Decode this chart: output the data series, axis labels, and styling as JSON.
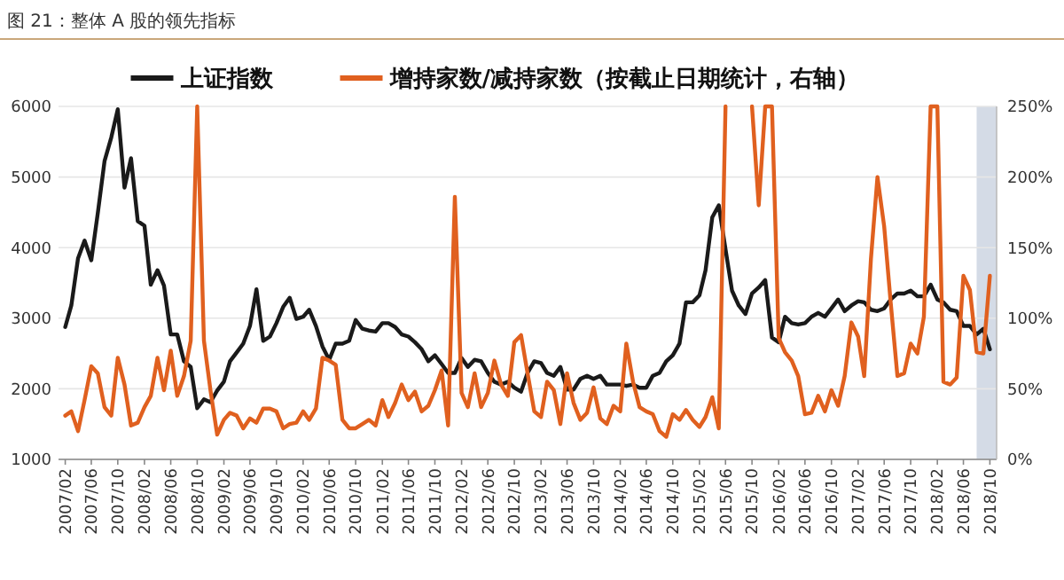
{
  "chart_data": {
    "type": "line",
    "title": "图 21：整体 A 股的领先指标",
    "x": [
      "2007-02",
      "2007-03",
      "2007-04",
      "2007-05",
      "2007-06",
      "2007-07",
      "2007-08",
      "2007-09",
      "2007-10",
      "2007-11",
      "2007-12",
      "2008-01",
      "2008-02",
      "2008-03",
      "2008-04",
      "2008-05",
      "2008-06",
      "2008-07",
      "2008-08",
      "2008-09",
      "2008-10",
      "2008-11",
      "2008-12",
      "2009-01",
      "2009-02",
      "2009-03",
      "2009-04",
      "2009-05",
      "2009-06",
      "2009-07",
      "2009-08",
      "2009-09",
      "2009-10",
      "2009-11",
      "2009-12",
      "2010-01",
      "2010-02",
      "2010-03",
      "2010-04",
      "2010-05",
      "2010-06",
      "2010-07",
      "2010-08",
      "2010-09",
      "2010-10",
      "2010-11",
      "2010-12",
      "2011-01",
      "2011-02",
      "2011-03",
      "2011-04",
      "2011-05",
      "2011-06",
      "2011-07",
      "2011-08",
      "2011-09",
      "2011-10",
      "2011-11",
      "2011-12",
      "2012-01",
      "2012-02",
      "2012-03",
      "2012-04",
      "2012-05",
      "2012-06",
      "2012-07",
      "2012-08",
      "2012-09",
      "2012-10",
      "2012-11",
      "2012-12",
      "2013-01",
      "2013-02",
      "2013-03",
      "2013-04",
      "2013-05",
      "2013-06",
      "2013-07",
      "2013-08",
      "2013-09",
      "2013-10",
      "2013-11",
      "2013-12",
      "2014-01",
      "2014-02",
      "2014-03",
      "2014-04",
      "2014-05",
      "2014-06",
      "2014-07",
      "2014-08",
      "2014-09",
      "2014-10",
      "2014-11",
      "2014-12",
      "2015-01",
      "2015-02",
      "2015-03",
      "2015-04",
      "2015-05",
      "2015-06",
      "2015-07",
      "2015-08",
      "2015-09",
      "2015-10",
      "2015-11",
      "2015-12",
      "2016-01",
      "2016-02",
      "2016-03",
      "2016-04",
      "2016-05",
      "2016-06",
      "2016-07",
      "2016-08",
      "2016-09",
      "2016-10",
      "2016-11",
      "2016-12",
      "2017-01",
      "2017-02",
      "2017-03",
      "2017-04",
      "2017-05",
      "2017-06",
      "2017-07",
      "2017-08",
      "2017-09",
      "2017-10",
      "2017-11",
      "2017-12",
      "2018-01",
      "2018-02",
      "2018-03",
      "2018-04",
      "2018-05",
      "2018-06",
      "2018-07",
      "2018-08",
      "2018-09",
      "2018-10"
    ],
    "series": [
      {
        "name": "上证指数",
        "color": "#1a1a1a",
        "values": [
          2875,
          3180,
          3850,
          4100,
          3820,
          4490,
          5225,
          5560,
          5960,
          4850,
          5265,
          4375,
          4310,
          3475,
          3680,
          3460,
          2770,
          2770,
          2390,
          2310,
          1725,
          1850,
          1810,
          1975,
          2100,
          2390,
          2515,
          2640,
          2890,
          3410,
          2680,
          2740,
          2930,
          3160,
          3290,
          2990,
          3020,
          3120,
          2890,
          2600,
          2410,
          2640,
          2640,
          2680,
          2975,
          2850,
          2825,
          2810,
          2930,
          2930,
          2875,
          2770,
          2740,
          2660,
          2560,
          2390,
          2475,
          2350,
          2225,
          2225,
          2435,
          2310,
          2410,
          2390,
          2225,
          2100,
          2060,
          2100,
          2015,
          1960,
          2225,
          2390,
          2365,
          2225,
          2185,
          2310,
          1990,
          1990,
          2140,
          2185,
          2140,
          2185,
          2060,
          2060,
          2060,
          2040,
          2060,
          2015,
          2015,
          2185,
          2225,
          2390,
          2475,
          2640,
          3225,
          3225,
          3325,
          3680,
          4430,
          4600,
          3975,
          3390,
          3180,
          3060,
          3350,
          3435,
          3540,
          2725,
          2660,
          3020,
          2930,
          2910,
          2930,
          3020,
          3075,
          3020,
          3140,
          3265,
          3100,
          3180,
          3240,
          3225,
          3120,
          3100,
          3140,
          3265,
          3350,
          3350,
          3390,
          3310,
          3310,
          3475,
          3265,
          3225,
          3120,
          3100,
          2890,
          2890,
          2770,
          2850,
          2560
        ]
      },
      {
        "name": "增持家数/减持家数（按截止日期统计，右轴）",
        "color": "#e0601f",
        "axis": "y2",
        "values": [
          31,
          34,
          20,
          42,
          66,
          61,
          37,
          31,
          72,
          53,
          24,
          26,
          37,
          45,
          72,
          49,
          77,
          45,
          59,
          84,
          250,
          84,
          49,
          17.5,
          28,
          33,
          31,
          22,
          29,
          26,
          36,
          36,
          34,
          22,
          25,
          26,
          34,
          28,
          36,
          72,
          70,
          67,
          28,
          22,
          22,
          25,
          28,
          24,
          42,
          30,
          40,
          53,
          42,
          48,
          34,
          38,
          49,
          63,
          24,
          186,
          47,
          37,
          61,
          37,
          47,
          70,
          53,
          45,
          83,
          88,
          61,
          34,
          30,
          55,
          49,
          25,
          61,
          40,
          28,
          33,
          51,
          29,
          25,
          38,
          34,
          82,
          55,
          37,
          34,
          32,
          20,
          16,
          32,
          28,
          35,
          28,
          23,
          30,
          44,
          22,
          250,
          null,
          null,
          null,
          250,
          180,
          250,
          250,
          86,
          76,
          70,
          59,
          32,
          33,
          45,
          34,
          49,
          38,
          59,
          97,
          87,
          59,
          142,
          200,
          165,
          111,
          59,
          61,
          82,
          75,
          101,
          250,
          250,
          55,
          53,
          58,
          130,
          120,
          76,
          75,
          130
        ]
      }
    ],
    "xlim": [
      "2007-01",
      "2018-11"
    ],
    "xticks": [
      {
        "value": "2007-02",
        "label": "2007/02"
      },
      {
        "value": "2007-06",
        "label": "2007/06"
      },
      {
        "value": "2007-10",
        "label": "2007/10"
      },
      {
        "value": "2008-02",
        "label": "2008/02"
      },
      {
        "value": "2008-06",
        "label": "2008/06"
      },
      {
        "value": "2008-10",
        "label": "2008/10"
      },
      {
        "value": "2009-02",
        "label": "2009/02"
      },
      {
        "value": "2009-06",
        "label": "2009/06"
      },
      {
        "value": "2009-10",
        "label": "2009/10"
      },
      {
        "value": "2010-02",
        "label": "2010/02"
      },
      {
        "value": "2010-06",
        "label": "2010/06"
      },
      {
        "value": "2010-10",
        "label": "2010/10"
      },
      {
        "value": "2011-02",
        "label": "2011/02"
      },
      {
        "value": "2011-06",
        "label": "2011/06"
      },
      {
        "value": "2011-10",
        "label": "2011/10"
      },
      {
        "value": "2012-02",
        "label": "2012/02"
      },
      {
        "value": "2012-06",
        "label": "2012/06"
      },
      {
        "value": "2012-10",
        "label": "2012/10"
      },
      {
        "value": "2013-02",
        "label": "2013/02"
      },
      {
        "value": "2013-06",
        "label": "2013/06"
      },
      {
        "value": "2013-10",
        "label": "2013/10"
      },
      {
        "value": "2014-02",
        "label": "2014/02"
      },
      {
        "value": "2014-06",
        "label": "2014/06"
      },
      {
        "value": "2014-10",
        "label": "2014/10"
      },
      {
        "value": "2015-02",
        "label": "2015/02"
      },
      {
        "value": "2015-06",
        "label": "2015/06"
      },
      {
        "value": "2015-10",
        "label": "2015/10"
      },
      {
        "value": "2016-02",
        "label": "2016/02"
      },
      {
        "value": "2016-06",
        "label": "2016/06"
      },
      {
        "value": "2016-10",
        "label": "2016/10"
      },
      {
        "value": "2017-02",
        "label": "2017/02"
      },
      {
        "value": "2017-06",
        "label": "2017/06"
      },
      {
        "value": "2017-10",
        "label": "2017/10"
      },
      {
        "value": "2018-02",
        "label": "2018/02"
      },
      {
        "value": "2018-06",
        "label": "2018/06"
      },
      {
        "value": "2018-10",
        "label": "2018/10"
      }
    ],
    "ylim": [
      1000,
      6000
    ],
    "yticks": [
      1000,
      2000,
      3000,
      4000,
      5000,
      6000
    ],
    "y2lim": [
      0,
      250
    ],
    "y2ticks": [
      {
        "value": 0,
        "label": "0%"
      },
      {
        "value": 50,
        "label": "50%"
      },
      {
        "value": 100,
        "label": "100%"
      },
      {
        "value": 150,
        "label": "150%"
      },
      {
        "value": 200,
        "label": "200%"
      },
      {
        "value": 250,
        "label": "250%"
      }
    ],
    "bands": [
      {
        "axis": "x",
        "from": "2018-08",
        "to": "2018-11",
        "color": "#cfd7e3"
      }
    ],
    "grid": "y",
    "legend": "top",
    "marker": "none",
    "line_style": "solid"
  }
}
